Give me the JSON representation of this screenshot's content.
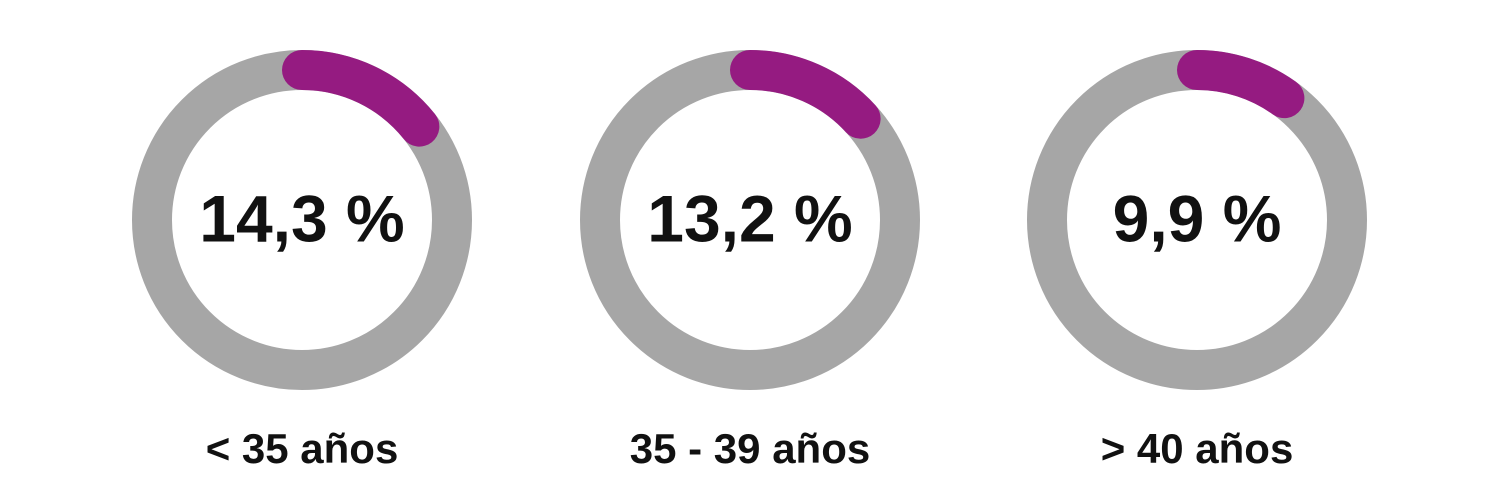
{
  "chart_data": {
    "type": "donut",
    "categories": [
      "< 35 años",
      "35 - 39 años",
      "> 40 años"
    ],
    "values": [
      14.3,
      13.2,
      9.9
    ],
    "value_labels": [
      "14,3 %",
      "13,2 %",
      "9,9 %"
    ],
    "color": "#951b81",
    "track_color": "#a6a6a6",
    "ylim": [
      0,
      100
    ]
  }
}
